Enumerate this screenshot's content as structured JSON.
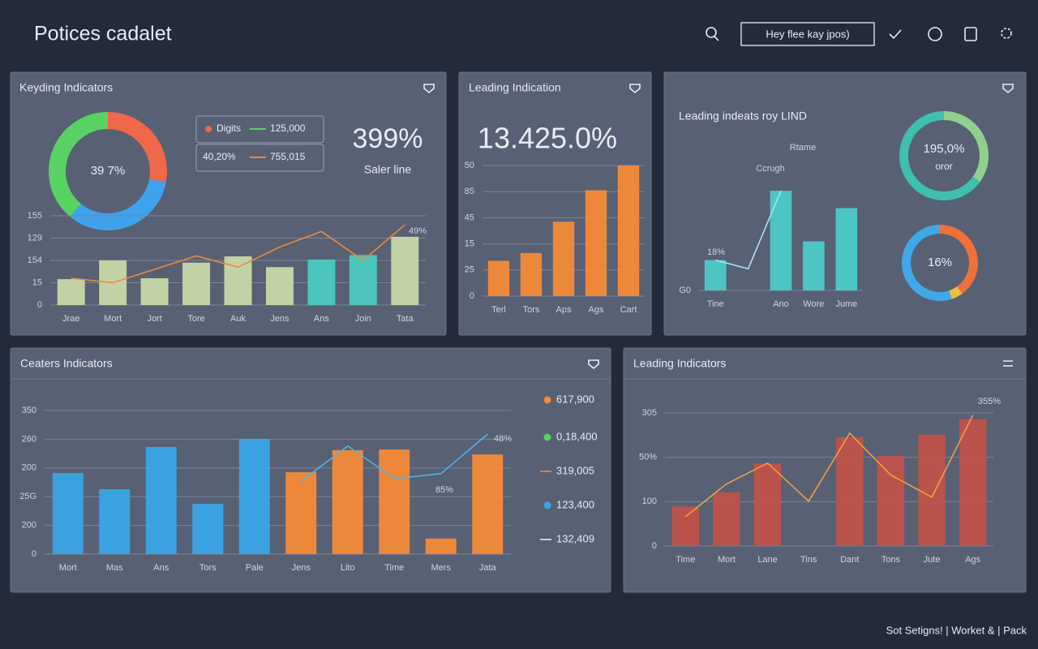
{
  "header": {
    "title": "Potices cadalet",
    "search": "Hey flee kay jpos)"
  },
  "footer": "Sot Setigns! | Worket & | Pack",
  "chart_data": [
    {
      "type": "pie",
      "title": "Keyding Indicators",
      "values": [
        28,
        33,
        39
      ],
      "colors": [
        "#f0674a",
        "#3fa2ec",
        "#58d262"
      ],
      "center_label": "39 7%",
      "legend": [
        {
          "name": "Digits",
          "value": "125,000"
        },
        {
          "name": "40,20%",
          "value": "755,015"
        }
      ],
      "kpi": "399%",
      "kpi_label": "Saler line"
    },
    {
      "type": "bar",
      "categories": [
        "Jrae",
        "Mort",
        "Jort",
        "Tore",
        "Auk",
        "Jens",
        "Ans",
        "Join",
        "Tata"
      ],
      "series": [
        {
          "values": [
            58,
            100,
            60,
            95,
            109,
            85,
            102,
            112,
            153
          ],
          "colors": [
            "#c8d8a6",
            "#c8d8a6",
            "#c8d8a6",
            "#c8d8a6",
            "#c8d8a6",
            "#c8d8a6",
            "#4ccac0",
            "#4ccac0",
            "#c8d8a6"
          ]
        },
        {
          "type": "line",
          "color": "#f08a3a",
          "values": [
            60,
            50,
            80,
            110,
            85,
            130,
            165,
            100,
            180
          ]
        }
      ],
      "ylim": [
        0,
        200
      ],
      "yticks": [
        0,
        {
          "value": 50,
          "label": "15"
        },
        {
          "value": 100,
          "label": "154"
        },
        {
          "value": 150,
          "label": "129"
        },
        {
          "value": 200,
          "label": "155"
        }
      ],
      "grid": true,
      "annotations": [
        "49%"
      ]
    },
    {
      "type": "bar",
      "title": "Leading Indication",
      "kpi": "13.425.0%",
      "categories": [
        "Terl",
        "Tors",
        "Aps",
        "Ags",
        "Cart"
      ],
      "series": [
        {
          "color": "#f58a38",
          "values": [
            27,
            33,
            57,
            81,
            100
          ]
        }
      ],
      "ylim": [
        0,
        100
      ],
      "yticks": [
        0,
        {
          "value": 20,
          "label": "25"
        },
        {
          "value": 40,
          "label": "15"
        },
        {
          "value": 60,
          "label": "45"
        },
        {
          "value": 80,
          "label": "85"
        },
        {
          "value": 100,
          "label": "50"
        }
      ],
      "grid": true
    },
    {
      "type": "bar",
      "title": "Leading indeats roy LIND",
      "categories": [
        "Tine",
        null,
        "Ano",
        "Wore",
        "Jume"
      ],
      "series": [
        {
          "color": "#4ccac8",
          "values": [
            21,
            null,
            69,
            34,
            57
          ]
        },
        {
          "type": "line",
          "color": "#a8e4f4",
          "values": [
            21,
            15,
            69,
            null,
            null
          ]
        }
      ],
      "ylim": [
        0,
        100
      ],
      "yticks": [
        {
          "value": 0,
          "label": "G0"
        }
      ],
      "grid": true,
      "annotations": [
        "18%",
        "Ccrugh",
        "Rtame"
      ]
    },
    {
      "type": "pie",
      "values": [
        35,
        65
      ],
      "colors": [
        "#8fd08e",
        "#3fbfae"
      ],
      "center_label": "195,0%",
      "center_sub": "oror"
    },
    {
      "type": "pie",
      "values": [
        40,
        5,
        55
      ],
      "colors": [
        "#f0703a",
        "#e8c040",
        "#3fa9e8"
      ],
      "center_label": "16%"
    },
    {
      "type": "bar",
      "title": "Ceaters Indicators",
      "categories": [
        "Mort",
        "Mas",
        "Ans",
        "Tors",
        "Pale",
        "Jens",
        "Lito",
        "Time",
        "Mers",
        "Jata"
      ],
      "series": [
        {
          "values": [
            282,
            226,
            373,
            175,
            401,
            285,
            362,
            364,
            54,
            347
          ],
          "colors": [
            "#3aa5e8",
            "#3aa5e8",
            "#3aa5e8",
            "#3aa5e8",
            "#3aa5e8",
            "#f58a38",
            "#f58a38",
            "#f58a38",
            "#f58a38",
            "#f58a38"
          ]
        },
        {
          "type": "line",
          "color": "#4fb3e8",
          "values": [
            null,
            null,
            null,
            null,
            null,
            254,
            376,
            263,
            280,
            418
          ]
        }
      ],
      "ylim": [
        0,
        500
      ],
      "yticks": [
        0,
        {
          "value": 100,
          "label": "200"
        },
        {
          "value": 200,
          "label": "25G"
        },
        {
          "value": 300,
          "label": "200"
        },
        {
          "value": 400,
          "label": "260"
        },
        {
          "value": 500,
          "label": "350"
        }
      ],
      "grid": true,
      "annotations": [
        "48%",
        "85%"
      ],
      "legend_items": [
        {
          "name": "617,900",
          "color": "#f58a38"
        },
        {
          "name": "0,18,400",
          "color": "#58d262"
        },
        {
          "name": "319,005",
          "color": "#f58a38"
        },
        {
          "name": "123,400",
          "color": "#3aa5e8"
        },
        {
          "name": "132,409",
          "color": "#e8ecf2"
        }
      ]
    },
    {
      "type": "bar",
      "title": "Leading Indicators",
      "categories": [
        "Time",
        "Mort",
        "Lane",
        "Tins",
        "Dant",
        "Tons",
        "Jute",
        "Ags"
      ],
      "series": [
        {
          "color": "#c0524a",
          "values": [
            89,
            121,
            186,
            null,
            245,
            203,
            251,
            286
          ]
        },
        {
          "type": "line",
          "color": "#f0a040",
          "values": [
            66,
            140,
            187,
            101,
            254,
            160,
            110,
            295
          ]
        }
      ],
      "ylim": [
        0,
        300
      ],
      "yticks": [
        0,
        100,
        {
          "value": 200,
          "label": "50%"
        },
        {
          "value": 300,
          "label": "305"
        }
      ],
      "grid": true,
      "annotations": [
        "355%"
      ]
    }
  ]
}
